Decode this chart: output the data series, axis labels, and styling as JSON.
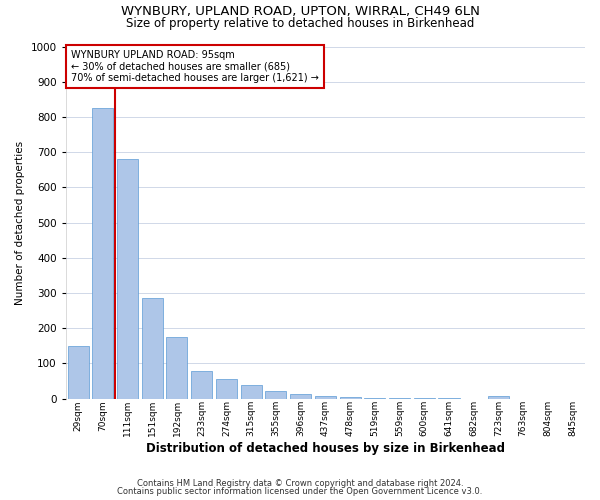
{
  "title1": "WYNBURY, UPLAND ROAD, UPTON, WIRRAL, CH49 6LN",
  "title2": "Size of property relative to detached houses in Birkenhead",
  "xlabel": "Distribution of detached houses by size in Birkenhead",
  "ylabel": "Number of detached properties",
  "footer1": "Contains HM Land Registry data © Crown copyright and database right 2024.",
  "footer2": "Contains public sector information licensed under the Open Government Licence v3.0.",
  "bar_labels": [
    "29sqm",
    "70sqm",
    "111sqm",
    "151sqm",
    "192sqm",
    "233sqm",
    "274sqm",
    "315sqm",
    "355sqm",
    "396sqm",
    "437sqm",
    "478sqm",
    "519sqm",
    "559sqm",
    "600sqm",
    "641sqm",
    "682sqm",
    "723sqm",
    "763sqm",
    "804sqm",
    "845sqm"
  ],
  "bar_values": [
    150,
    825,
    680,
    285,
    175,
    78,
    55,
    40,
    22,
    13,
    8,
    5,
    3,
    2,
    1,
    1,
    0,
    8,
    0,
    0,
    0
  ],
  "bar_color": "#aec6e8",
  "bar_edge_color": "#5b9bd5",
  "vline_x": 1.5,
  "vline_color": "#cc0000",
  "annotation_title": "WYNBURY UPLAND ROAD: 95sqm",
  "annotation_line2": "← 30% of detached houses are smaller (685)",
  "annotation_line3": "70% of semi-detached houses are larger (1,621) →",
  "annotation_box_color": "#cc0000",
  "ylim": [
    0,
    1000
  ],
  "yticks": [
    0,
    100,
    200,
    300,
    400,
    500,
    600,
    700,
    800,
    900,
    1000
  ],
  "background_color": "#ffffff",
  "grid_color": "#d0d8e8"
}
